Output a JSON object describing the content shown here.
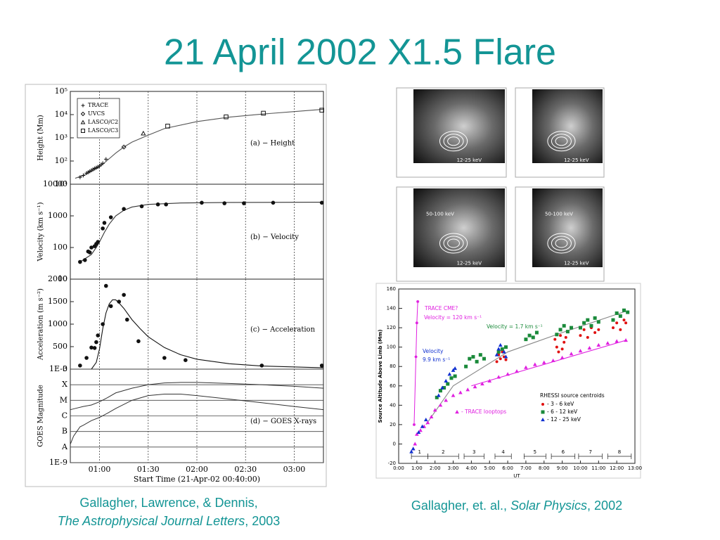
{
  "title": "21 April 2002 X1.5 Flare",
  "captions": [
    {
      "lines": [
        [
          {
            "text": "Gallagher, Lawrence, & Dennis,"
          }
        ],
        [
          {
            "text": "The Astrophysical Journal Letters",
            "italic": true
          },
          {
            "text": ", 2003"
          }
        ]
      ]
    },
    {
      "lines": [
        [
          {
            "text": "Gallagher, et. al., "
          },
          {
            "text": "Solar Physics",
            "italic": true
          },
          {
            "text": ", 2002"
          }
        ]
      ]
    }
  ],
  "images": [
    {
      "labels": [
        "12-25 keV"
      ]
    },
    {
      "labels": [
        "12-25 keV"
      ]
    },
    {
      "labels": [
        "50-100 keV",
        "12-25 keV"
      ]
    },
    {
      "labels": [
        "50-100 keV",
        "12-25 keV"
      ]
    }
  ],
  "chart_data": [
    {
      "type": "scatter",
      "ylabel": "Height (Mm)",
      "panel_label": "(a) − Height",
      "log_y": true,
      "xlim": [
        42,
        198
      ],
      "xticks": [
        60,
        90,
        120,
        150,
        180
      ],
      "grid_x": true,
      "ylim": [
        10,
        100000
      ],
      "yticks": [
        {
          "value": 10,
          "label": "10¹"
        },
        {
          "value": 100,
          "label": "10²"
        },
        {
          "value": 1000,
          "label": "10³"
        },
        {
          "value": 10000,
          "label": "10⁴"
        },
        {
          "value": 100000,
          "label": "10⁵"
        }
      ],
      "legend": "upper-left",
      "series": [
        {
          "name": "TRACE",
          "marker": "plus",
          "color": "#111111",
          "x": [
            48,
            50,
            52,
            53,
            54,
            55,
            56,
            57,
            58,
            59,
            60,
            61,
            62,
            64
          ],
          "values": [
            20,
            24,
            30,
            33,
            36,
            40,
            44,
            48,
            52,
            56,
            62,
            70,
            80,
            120
          ]
        },
        {
          "name": "UVCS",
          "marker": "diamond",
          "color": "#111111",
          "x": [
            75
          ],
          "values": [
            400
          ]
        },
        {
          "name": "LASCO/C2",
          "marker": "triangle",
          "color": "#111111",
          "x": [
            87
          ],
          "values": [
            1550
          ]
        },
        {
          "name": "LASCO/C3",
          "marker": "square",
          "color": "#111111",
          "x": [
            102,
            138,
            161,
            197
          ],
          "values": [
            3200,
            8000,
            11500,
            15500
          ]
        }
      ],
      "fits": [
        {
          "color": "#555555",
          "x": [
            45,
            50,
            55,
            60,
            65,
            70,
            75,
            80,
            90,
            100,
            120,
            140,
            160,
            180,
            198
          ],
          "values": [
            18,
            24,
            35,
            55,
            110,
            220,
            400,
            650,
            1300,
            2500,
            5000,
            7800,
            10500,
            13500,
            17000
          ]
        }
      ]
    },
    {
      "type": "scatter",
      "ylabel": "Velocity (km s⁻¹)",
      "panel_label": "(b) − Velocity",
      "log_y": true,
      "xlim": [
        42,
        198
      ],
      "xticks": [
        60,
        90,
        120,
        150,
        180
      ],
      "grid_x": true,
      "ylim": [
        10,
        10000
      ],
      "yticks": [
        10,
        100,
        1000,
        10000
      ],
      "series": [
        {
          "marker": "circle",
          "color": "#111111",
          "x": [
            48,
            51,
            53,
            54,
            55,
            57,
            58,
            59,
            62,
            63,
            67,
            75,
            86,
            96,
            101,
            123,
            137,
            149,
            167,
            197
          ],
          "values": [
            35,
            40,
            75,
            70,
            100,
            110,
            130,
            150,
            400,
            600,
            900,
            1650,
            2000,
            2300,
            2300,
            2600,
            2500,
            2500,
            2600,
            2600
          ]
        }
      ],
      "fits": [
        {
          "color": "#333333",
          "x": [
            48,
            55,
            58,
            60,
            63,
            66,
            70,
            75,
            80,
            90,
            110,
            140,
            198
          ],
          "values": [
            35,
            60,
            100,
            150,
            300,
            550,
            1000,
            1500,
            1900,
            2300,
            2550,
            2650,
            2700
          ]
        }
      ]
    },
    {
      "type": "scatter",
      "ylabel": "Acceleration (m s⁻²)",
      "panel_label": "(c) − Acceleration",
      "xlim": [
        42,
        198
      ],
      "xticks": [
        60,
        90,
        120,
        150,
        180
      ],
      "grid_x": true,
      "ylim": [
        0,
        2000
      ],
      "yticks": [
        0,
        500,
        1000,
        1500,
        2000
      ],
      "series": [
        {
          "marker": "circle",
          "color": "#111111",
          "x": [
            48,
            52,
            55,
            57,
            58,
            59,
            62,
            64,
            67,
            72,
            75,
            77,
            84,
            100,
            113,
            160,
            197
          ],
          "values": [
            80,
            250,
            480,
            470,
            600,
            750,
            1000,
            1850,
            1400,
            1500,
            1650,
            1100,
            620,
            250,
            200,
            80,
            80
          ]
        }
      ],
      "fits": [
        {
          "color": "#111111",
          "x": [
            55,
            58,
            60,
            62,
            64,
            66,
            68,
            70,
            72,
            75,
            80,
            85,
            90,
            100,
            110,
            120,
            140,
            160,
            198
          ],
          "values": [
            0,
            150,
            450,
            900,
            1250,
            1450,
            1540,
            1540,
            1470,
            1350,
            1100,
            900,
            720,
            480,
            320,
            220,
            120,
            70,
            30
          ]
        }
      ]
    },
    {
      "type": "line",
      "ylabel": "GOES Magnitude",
      "panel_label": "(d) − GOES X-rays",
      "log_y": true,
      "grid_y": true,
      "xlabel": "Start Time (21-Apr-02 00:40:00)",
      "xlim": [
        42,
        198
      ],
      "grid_x": true,
      "xticks": [
        {
          "value": 60,
          "label": "01:00"
        },
        {
          "value": 90,
          "label": "01:30"
        },
        {
          "value": 120,
          "label": "02:00"
        },
        {
          "value": 150,
          "label": "02:30"
        },
        {
          "value": 180,
          "label": "03:00"
        }
      ],
      "ylim": [
        1e-09,
        0.001
      ],
      "yticks": [
        {
          "value": 1e-09,
          "label": "1E-9"
        },
        {
          "value": 1e-08,
          "label": "A"
        },
        {
          "value": 1e-07,
          "label": "B"
        },
        {
          "value": 1e-06,
          "label": "C"
        },
        {
          "value": 1e-05,
          "label": "M"
        },
        {
          "value": 0.0001,
          "label": "X"
        },
        {
          "value": 0.001,
          "label": "1E-3"
        }
      ],
      "series": [
        {
          "color": "#333333",
          "x": [
            42,
            45,
            50,
            55,
            60,
            65,
            70,
            80,
            90,
            100,
            110,
            120,
            140,
            160,
            180,
            198
          ],
          "values": [
            2.5e-06,
            3e-06,
            4e-06,
            5e-06,
            8e-06,
            1.5e-05,
            3e-05,
            6e-05,
            0.0001,
            0.00013,
            0.00014,
            0.00014,
            0.00012,
            0.0001,
            8e-05,
            6e-05
          ]
        },
        {
          "color": "#333333",
          "x": [
            42,
            44,
            46,
            48,
            50,
            55,
            60,
            65,
            70,
            80,
            90,
            100,
            110,
            120,
            140,
            160,
            180,
            198
          ],
          "values": [
            1.5e-08,
            5e-08,
            1e-07,
            2e-07,
            2.5e-07,
            5e-07,
            8e-07,
            1.5e-06,
            3e-06,
            1e-05,
            2e-05,
            2.5e-05,
            2.5e-05,
            2e-05,
            1.2e-05,
            7e-06,
            4e-06,
            2.5e-06
          ]
        }
      ]
    },
    {
      "type": "scatter",
      "ylabel": "Source Altitude Above Limb (Mm)",
      "xlabel": "UT",
      "xlim": [
        0,
        13
      ],
      "xticks": [
        {
          "value": 0,
          "label": "0:00"
        },
        {
          "value": 1,
          "label": "1:00"
        },
        {
          "value": 2,
          "label": "2:00"
        },
        {
          "value": 3,
          "label": "3:00"
        },
        {
          "value": 4,
          "label": "4:00"
        },
        {
          "value": 5,
          "label": "5:00"
        },
        {
          "value": 6,
          "label": "6:00"
        },
        {
          "value": 7,
          "label": "7:00"
        },
        {
          "value": 8,
          "label": "8:00"
        },
        {
          "value": 9,
          "label": "9:00"
        },
        {
          "value": 10,
          "label": "10:00"
        },
        {
          "value": 11,
          "label": "11:00"
        },
        {
          "value": 12,
          "label": "12:00"
        },
        {
          "value": 13,
          "label": "13:00"
        }
      ],
      "ylim": [
        -20,
        160
      ],
      "yticks": [
        -20,
        0,
        20,
        40,
        60,
        80,
        100,
        120,
        140,
        160
      ],
      "legend_title": "RHESSI source centroids",
      "series": [
        {
          "name": "- TRACE looptops",
          "marker": "triangle",
          "color": "#e020e0",
          "x": [
            0.8,
            0.9,
            1.0,
            1.2,
            1.4,
            1.6,
            1.8,
            2.0,
            2.3,
            2.6,
            3.0,
            3.4,
            3.8,
            4.2,
            4.6,
            5.0,
            5.5,
            6.0,
            6.5,
            7.0,
            7.5,
            8.0,
            8.5,
            9.0,
            9.5,
            10.0,
            10.5,
            11.0,
            11.5,
            12.0,
            12.5
          ],
          "values": [
            -5,
            0,
            10,
            14,
            18,
            22,
            28,
            35,
            40,
            45,
            50,
            53,
            56,
            59,
            62,
            65,
            69,
            72,
            75,
            79,
            82,
            84,
            86,
            89,
            93,
            96,
            99,
            102,
            104,
            106,
            107
          ]
        },
        {
          "name": "- 3 - 6 keV",
          "marker": "circle",
          "color": "#e01010",
          "legend": true,
          "x": [
            5.4,
            5.5,
            5.6,
            5.7,
            5.8,
            5.9,
            8.6,
            8.7,
            8.8,
            8.9,
            9.0,
            9.1,
            9.2,
            10.0,
            10.2,
            10.4,
            10.6,
            10.8,
            11.0,
            11.8,
            12.0,
            12.2,
            12.4,
            12.5
          ],
          "values": [
            85,
            92,
            88,
            95,
            90,
            87,
            108,
            100,
            95,
            112,
            98,
            105,
            110,
            112,
            118,
            110,
            120,
            115,
            118,
            120,
            125,
            118,
            128,
            125
          ]
        },
        {
          "name": "- 6 - 12 keV",
          "marker": "square",
          "color": "#1a8a3a",
          "legend": true,
          "x": [
            2.1,
            2.3,
            2.5,
            2.7,
            2.9,
            3.1,
            3.7,
            3.9,
            4.1,
            4.3,
            4.5,
            4.7,
            5.5,
            5.7,
            5.9,
            7.0,
            7.2,
            7.4,
            7.6,
            8.7,
            8.9,
            9.1,
            9.3,
            9.5,
            10.0,
            10.2,
            10.4,
            10.6,
            10.8,
            11.0,
            11.8,
            12.0,
            12.2,
            12.4,
            12.6
          ],
          "values": [
            48,
            55,
            58,
            62,
            68,
            70,
            80,
            88,
            90,
            85,
            92,
            88,
            95,
            98,
            100,
            108,
            112,
            110,
            115,
            113,
            118,
            122,
            116,
            120,
            120,
            125,
            128,
            122,
            130,
            126,
            128,
            135,
            132,
            138,
            136
          ]
        },
        {
          "name": "- 12 - 25 keV",
          "marker": "triangle",
          "color": "#1030d0",
          "legend": true,
          "x": [
            0.7,
            0.8,
            1.1,
            1.3,
            1.5,
            2.2,
            2.4,
            2.6,
            2.8,
            3.0,
            3.1,
            5.4,
            5.5,
            5.6,
            5.8,
            5.9
          ],
          "values": [
            -8,
            -5,
            12,
            18,
            25,
            50,
            58,
            65,
            72,
            76,
            78,
            92,
            98,
            102,
            95,
            90
          ]
        },
        {
          "name": "TRACE CME?",
          "marker": "star",
          "color": "#e020e0",
          "connect": true,
          "x": [
            0.85,
            0.95,
            1.0,
            1.05
          ],
          "values": [
            20,
            90,
            125,
            147
          ]
        }
      ],
      "fits": [
        {
          "color": "#888888",
          "x": [
            1.5,
            3,
            6,
            9,
            12.5
          ],
          "values": [
            20,
            60,
            95,
            115,
            137
          ]
        },
        {
          "color": "#e020e0",
          "x": [
            4,
            12.5
          ],
          "values": [
            60,
            107
          ]
        }
      ],
      "annotations": [
        {
          "text": "Velocity = 120 km s⁻¹",
          "color": "#e020e0"
        },
        {
          "text": "Velocity = 1.7 km s⁻¹",
          "color": "#1a8a3a"
        },
        {
          "text": "Velocity",
          "color": "#1030d0"
        },
        {
          "text": "9.9 km s⁻¹",
          "color": "#1030d0"
        }
      ],
      "intervals": [
        {
          "label": "1",
          "start": 0.7,
          "end": 1.6
        },
        {
          "label": "2",
          "start": 1.6,
          "end": 3.3
        },
        {
          "label": "3",
          "start": 3.6,
          "end": 4.7
        },
        {
          "label": "4",
          "start": 5.3,
          "end": 6.2
        },
        {
          "label": "5",
          "start": 6.9,
          "end": 8.1
        },
        {
          "label": "6",
          "start": 8.4,
          "end": 9.7
        },
        {
          "label": "7",
          "start": 9.9,
          "end": 11.2
        },
        {
          "label": "8",
          "start": 11.5,
          "end": 12.8
        }
      ]
    }
  ]
}
